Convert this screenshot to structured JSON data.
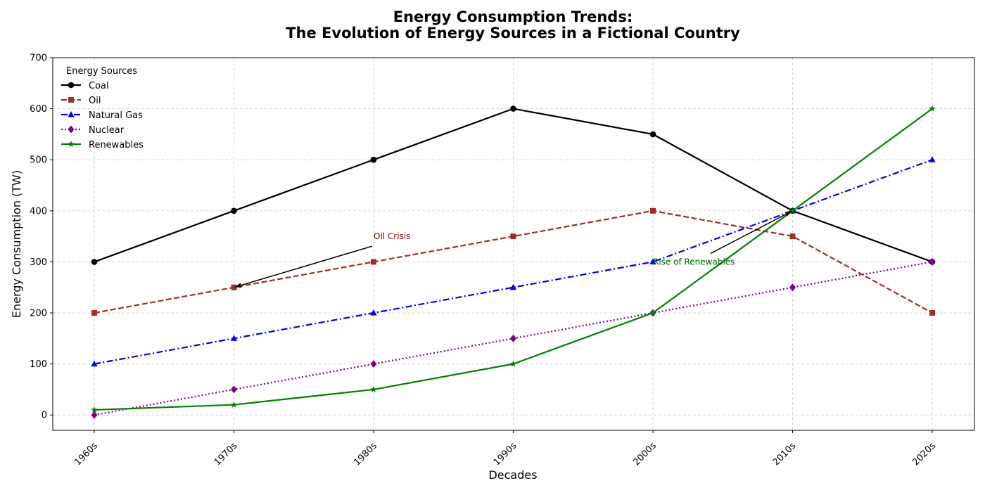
{
  "chart_data": {
    "type": "line",
    "title": "Energy Consumption Trends:",
    "subtitle": "The Evolution of Energy Sources in a Fictional Country",
    "xlabel": "Decades",
    "ylabel": "Energy Consumption (TW)",
    "categories": [
      "1960s",
      "1970s",
      "1980s",
      "1990s",
      "2000s",
      "2010s",
      "2020s"
    ],
    "ylim": [
      -30,
      700
    ],
    "yticks": [
      0,
      100,
      200,
      300,
      400,
      500,
      600,
      700
    ],
    "grid": true,
    "legend": {
      "title": "Energy Sources",
      "placement": "top-left"
    },
    "series": [
      {
        "name": "Coal",
        "values": [
          300,
          400,
          500,
          600,
          550,
          400,
          300
        ],
        "color": "#000000",
        "dash": "solid",
        "marker": "circle"
      },
      {
        "name": "Oil",
        "values": [
          200,
          250,
          300,
          350,
          400,
          350,
          200
        ],
        "color": "#a52a2a",
        "dash": "dashed",
        "marker": "square"
      },
      {
        "name": "Natural Gas",
        "values": [
          100,
          150,
          200,
          250,
          300,
          400,
          500
        ],
        "color": "#0000ee",
        "dash": "dashdot",
        "marker": "triangle"
      },
      {
        "name": "Nuclear",
        "values": [
          0,
          50,
          100,
          150,
          200,
          250,
          300
        ],
        "color": "#800080",
        "dash": "dotted",
        "marker": "diamond"
      },
      {
        "name": "Renewables",
        "values": [
          10,
          20,
          50,
          100,
          200,
          400,
          600
        ],
        "color": "#008000",
        "dash": "solid",
        "marker": "star"
      }
    ],
    "annotations": [
      {
        "text": "Oil Crisis",
        "color": "#8b0000",
        "text_at": {
          "x": "1980s",
          "y": 350
        },
        "arrow_to": {
          "x": "1970s",
          "y": 250
        }
      },
      {
        "text": "Rise of Renewables",
        "color": "#006400",
        "text_at": {
          "x": "2000s",
          "y": 300
        },
        "arrow_to": {
          "x": "2010s",
          "y": 400
        }
      }
    ]
  }
}
